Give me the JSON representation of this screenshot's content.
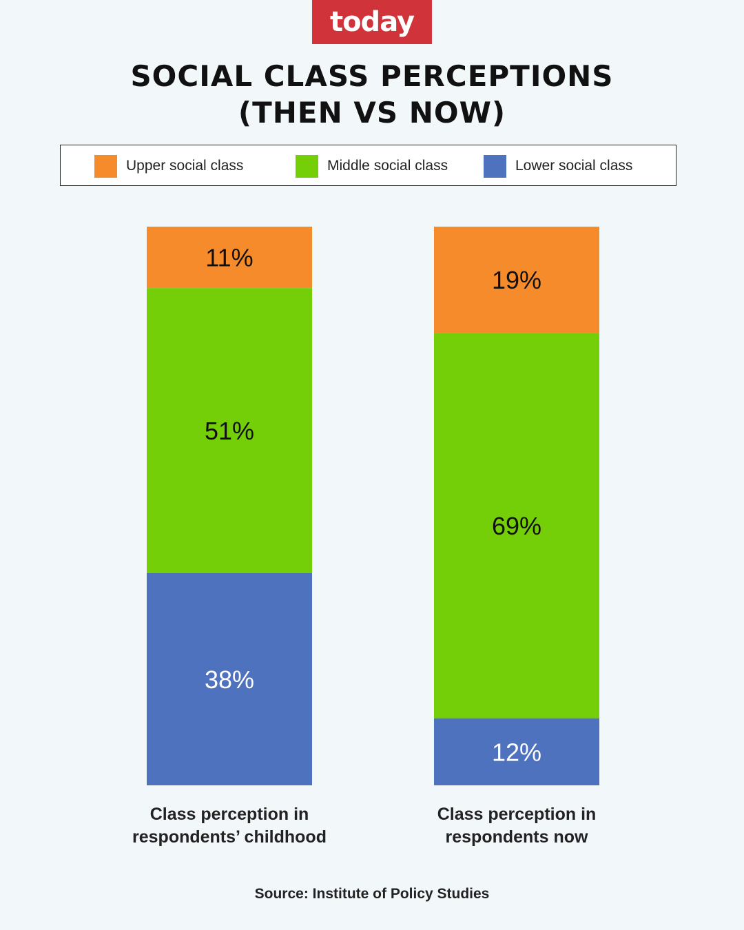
{
  "brand": {
    "logo_text": "today",
    "logo_color": "#d0343a"
  },
  "title_lines": [
    "SOCIAL CLASS PERCEPTIONS",
    "(THEN VS NOW)"
  ],
  "legend": [
    {
      "label": "Upper social class",
      "color": "#f58b2a"
    },
    {
      "label": "Middle social class",
      "color": "#74ce08"
    },
    {
      "label": "Lower social class",
      "color": "#4f72bf"
    }
  ],
  "source": "Source: Institute of Policy Studies",
  "chart_data": {
    "type": "bar",
    "stacked": true,
    "orientation": "vertical",
    "unit": "%",
    "categories": [
      [
        "Class perception in",
        "respondents’ childhood"
      ],
      [
        "Class perception in",
        "respondents now"
      ]
    ],
    "series": [
      {
        "name": "Upper social class",
        "color": "#f58b2a",
        "label_color": "#111111",
        "values": [
          11,
          19
        ]
      },
      {
        "name": "Middle social class",
        "color": "#74ce08",
        "label_color": "#111111",
        "values": [
          51,
          69
        ]
      },
      {
        "name": "Lower social class",
        "color": "#4f72bf",
        "label_color": "#ffffff",
        "values": [
          38,
          12
        ]
      }
    ],
    "ylim": [
      0,
      100
    ],
    "grid": false,
    "legend_position": "top"
  }
}
